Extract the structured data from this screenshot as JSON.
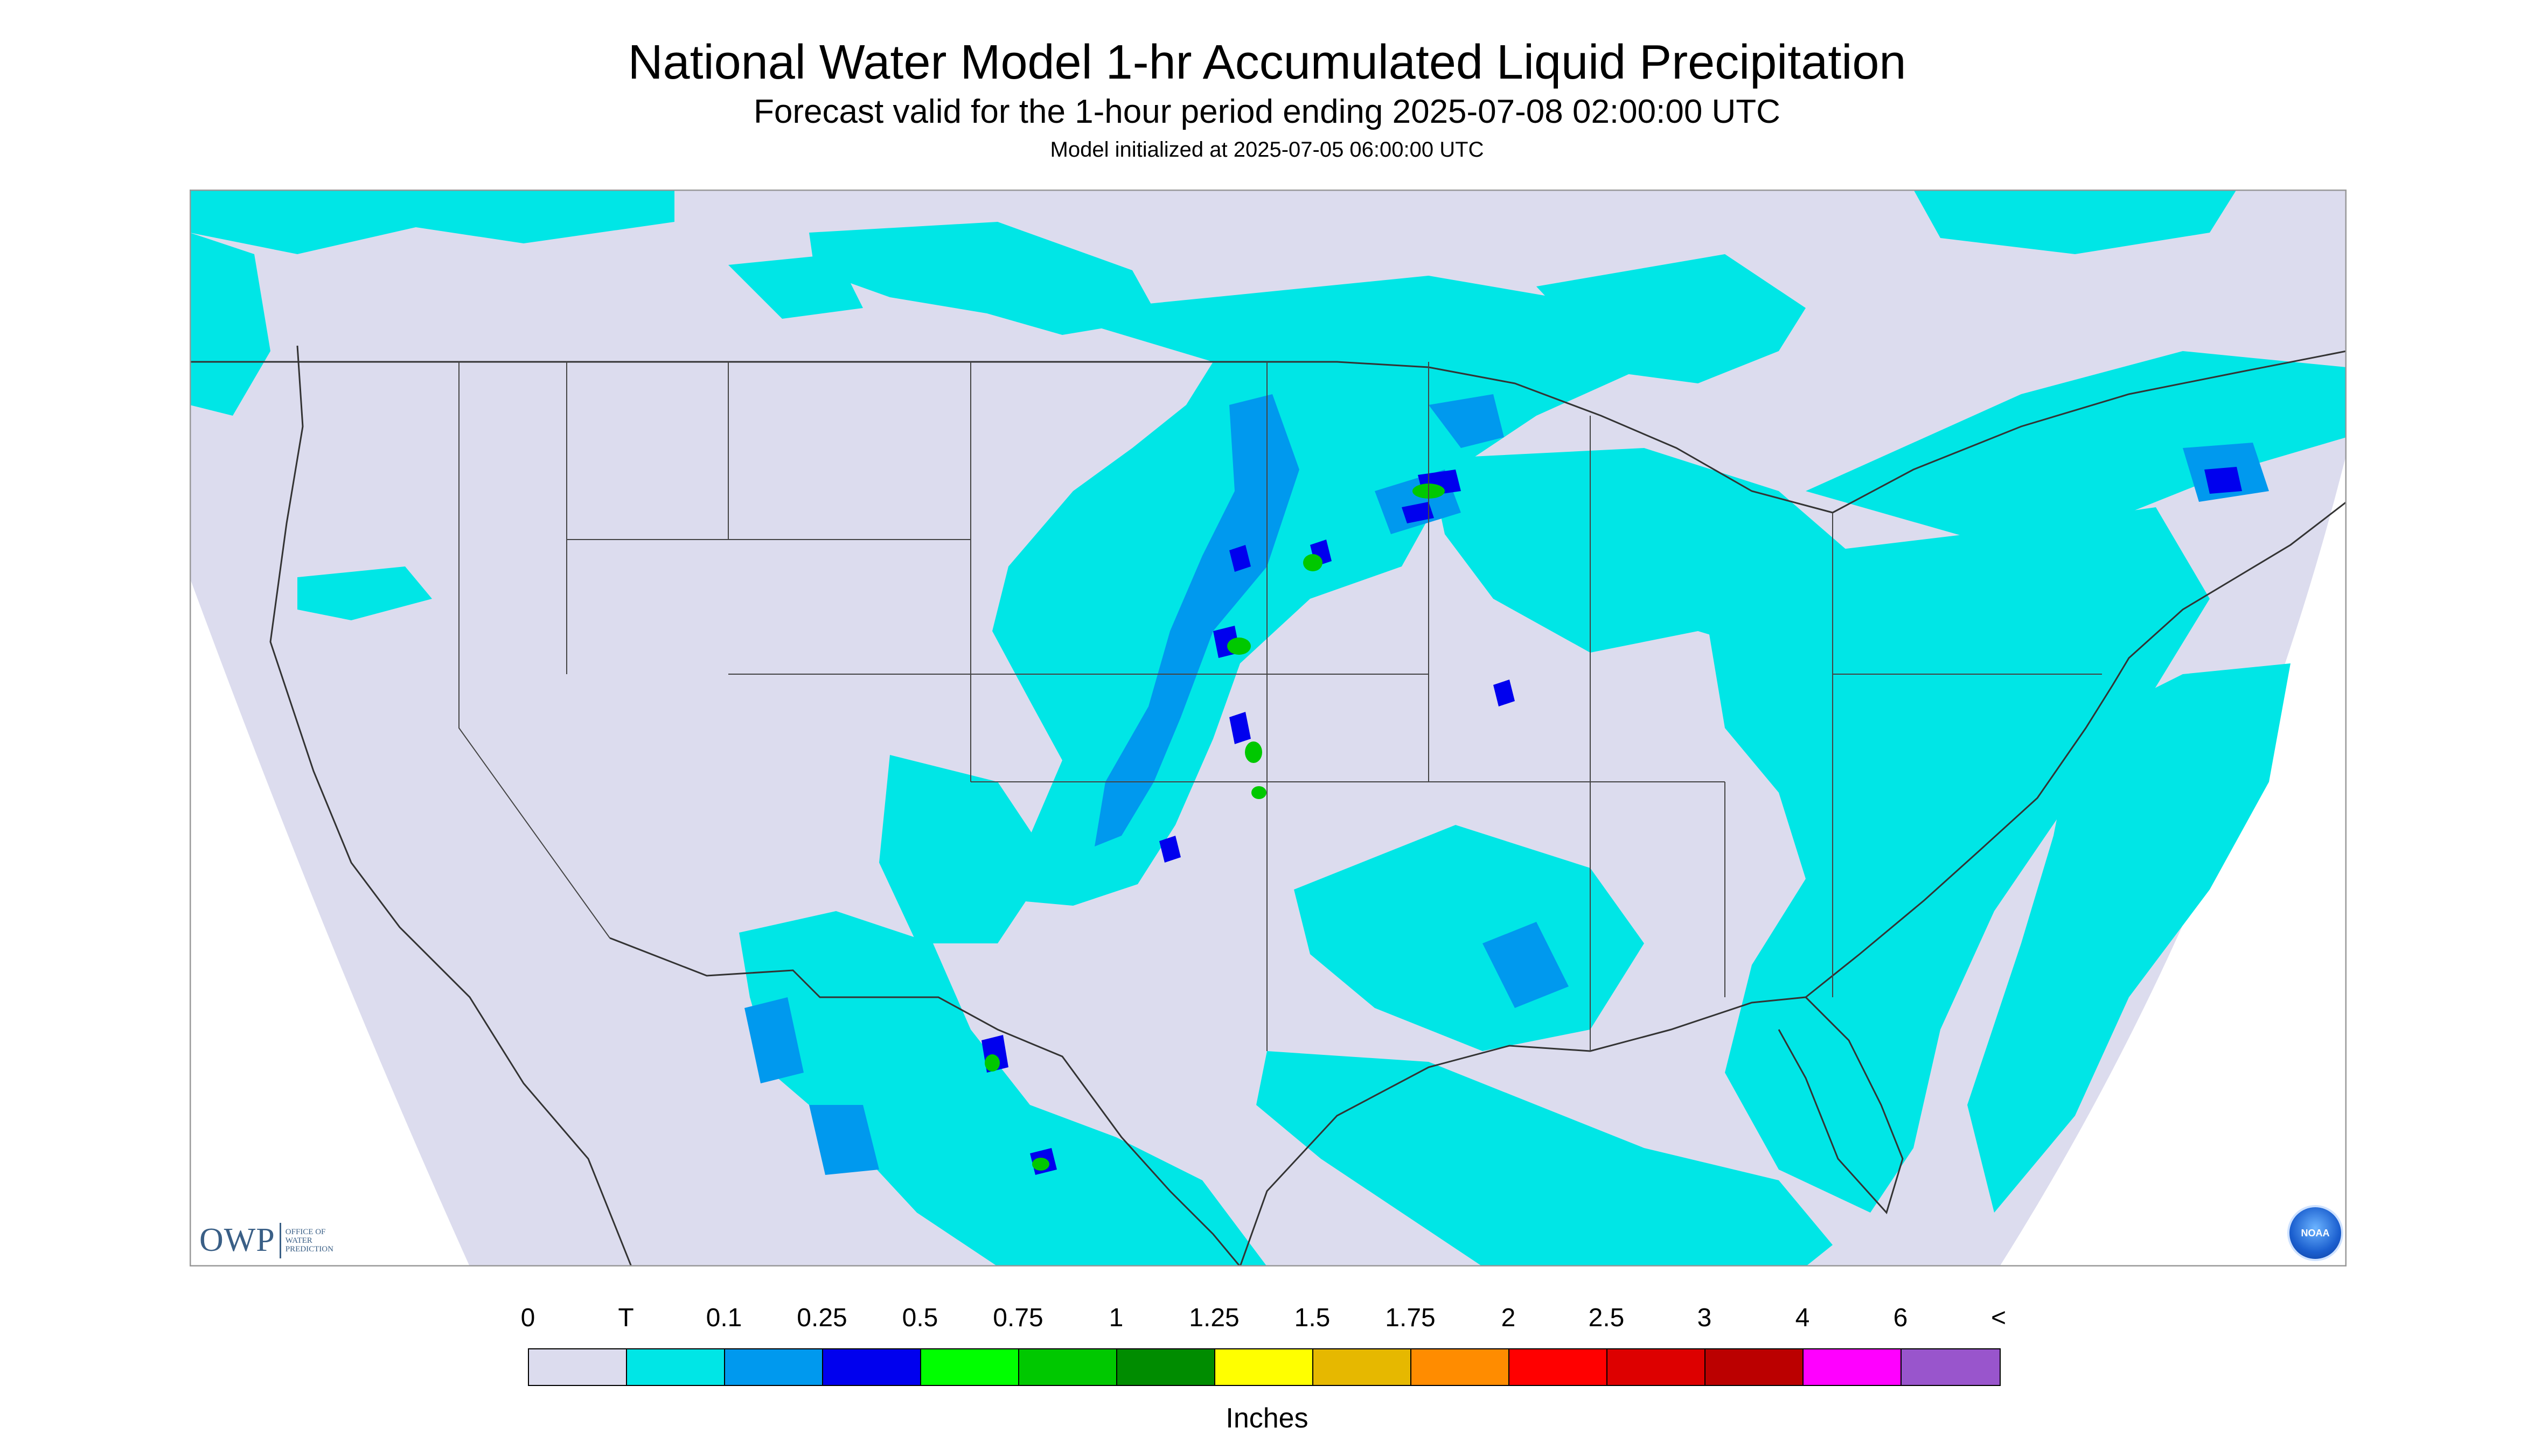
{
  "header": {
    "title": "National Water Model 1-hr Accumulated Liquid Precipitation",
    "subtitle": "Forecast valid for the 1-hour period ending 2025-07-08 02:00:00 UTC",
    "init": "Model initialized at 2025-07-05 06:00:00 UTC"
  },
  "branding": {
    "owp_mark": "OWP",
    "owp_lines": [
      "OFFICE OF",
      "WATER",
      "PREDICTION"
    ],
    "noaa_label": "NOAA"
  },
  "legend": {
    "units": "Inches",
    "tick_labels": [
      "0",
      "T",
      "0.1",
      "0.25",
      "0.5",
      "0.75",
      "1",
      "1.25",
      "1.5",
      "1.75",
      "2",
      "2.5",
      "3",
      "4",
      "6",
      "<"
    ],
    "colors": [
      "#dcdcee",
      "#00e6e6",
      "#0099ee",
      "#0000ee",
      "#00ff00",
      "#00c800",
      "#008c00",
      "#ffff00",
      "#e6b800",
      "#ff8c00",
      "#ff0000",
      "#dd0000",
      "#bb0000",
      "#ff00ff",
      "#9955cc"
    ]
  },
  "colors": {
    "outside_domain": "#ffffff",
    "domain_background": "#dcdcee",
    "border_lines": "#333333"
  }
}
